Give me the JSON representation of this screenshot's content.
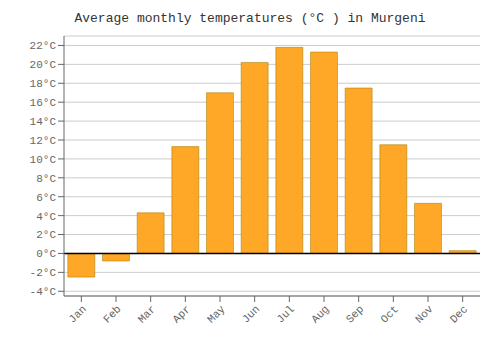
{
  "chart_data": {
    "type": "bar",
    "title": "Average monthly temperatures (°C ) in Murgeni",
    "categories": [
      "Jan",
      "Feb",
      "Mar",
      "Apr",
      "May",
      "Jun",
      "Jul",
      "Aug",
      "Sep",
      "Oct",
      "Nov",
      "Dec"
    ],
    "values": [
      -2.5,
      -0.8,
      4.3,
      11.3,
      17.0,
      20.2,
      21.8,
      21.3,
      17.5,
      11.5,
      5.3,
      0.3
    ],
    "color": "#FFA726",
    "ylim": [
      -4.5,
      23
    ],
    "yticks": [
      {
        "value": -4,
        "label": "-4°C"
      },
      {
        "value": -2,
        "label": "-2°C"
      },
      {
        "value": 0,
        "label": "0°C"
      },
      {
        "value": 2,
        "label": "2°C"
      },
      {
        "value": 4,
        "label": "4°C"
      },
      {
        "value": 6,
        "label": "6°C"
      },
      {
        "value": 8,
        "label": "8°C"
      },
      {
        "value": 10,
        "label": "10°C"
      },
      {
        "value": 12,
        "label": "12°C"
      },
      {
        "value": 14,
        "label": "14°C"
      },
      {
        "value": 16,
        "label": "16°C"
      },
      {
        "value": 18,
        "label": "18°C"
      },
      {
        "value": 20,
        "label": "20°C"
      },
      {
        "value": 22,
        "label": "22°C"
      }
    ],
    "grid": true
  }
}
